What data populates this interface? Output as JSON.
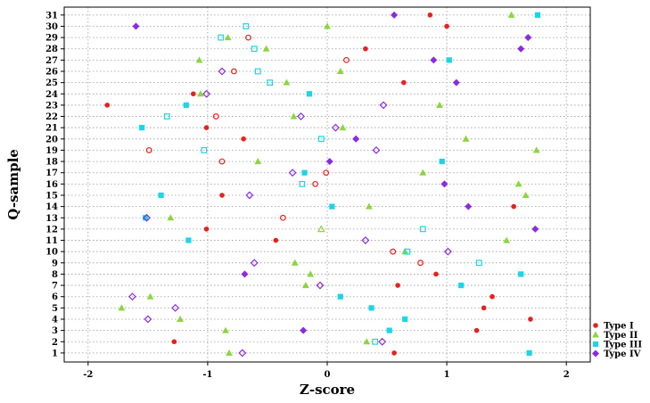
{
  "chart_data": {
    "type": "scatter",
    "xlabel": "Z-score",
    "ylabel": "Q-sample",
    "xlim": [
      -2.2,
      2.2
    ],
    "ylim": [
      0.2,
      31.7
    ],
    "xticks": [
      -2,
      -1,
      0,
      1,
      2
    ],
    "yticks": [
      1,
      2,
      3,
      4,
      5,
      6,
      7,
      8,
      9,
      10,
      11,
      12,
      13,
      14,
      15,
      16,
      17,
      18,
      19,
      20,
      21,
      22,
      23,
      24,
      25,
      26,
      27,
      28,
      29,
      30,
      31
    ],
    "grid": true,
    "legend_position": "bottom-right",
    "series": [
      {
        "name": "Type I",
        "color": "#e8201e",
        "marker": "circle",
        "points": [
          [
            0.56,
            1
          ],
          [
            -1.28,
            2
          ],
          [
            1.25,
            3
          ],
          [
            1.7,
            4
          ],
          [
            1.31,
            5
          ],
          [
            1.38,
            6
          ],
          [
            0.59,
            7
          ],
          [
            0.91,
            8
          ],
          [
            0.78,
            9
          ],
          [
            0.55,
            10
          ],
          [
            -0.43,
            11
          ],
          [
            -1.01,
            12
          ],
          [
            -0.37,
            13
          ],
          [
            1.56,
            14
          ],
          [
            -0.88,
            15
          ],
          [
            -0.1,
            16
          ],
          [
            -0.01,
            17
          ],
          [
            -0.88,
            18
          ],
          [
            -1.49,
            19
          ],
          [
            -0.7,
            20
          ],
          [
            -1.01,
            21
          ],
          [
            -0.93,
            22
          ],
          [
            -1.84,
            23
          ],
          [
            -1.12,
            24
          ],
          [
            0.64,
            25
          ],
          [
            -0.78,
            26
          ],
          [
            0.16,
            27
          ],
          [
            0.32,
            28
          ],
          [
            -0.66,
            29
          ],
          [
            1.0,
            30
          ],
          [
            0.86,
            31
          ]
        ],
        "hollow": [
          false,
          false,
          false,
          false,
          false,
          false,
          false,
          false,
          true,
          true,
          false,
          false,
          true,
          false,
          false,
          true,
          true,
          true,
          true,
          false,
          false,
          true,
          false,
          false,
          false,
          true,
          true,
          false,
          true,
          false,
          false
        ]
      },
      {
        "name": "Type II",
        "color": "#8cd63c",
        "marker": "triangle",
        "points": [
          [
            -0.82,
            1
          ],
          [
            0.33,
            2
          ],
          [
            -0.85,
            3
          ],
          [
            -1.23,
            4
          ],
          [
            -1.72,
            5
          ],
          [
            -1.48,
            6
          ],
          [
            -0.18,
            7
          ],
          [
            -0.14,
            8
          ],
          [
            -0.27,
            9
          ],
          [
            0.65,
            10
          ],
          [
            1.5,
            11
          ],
          [
            -0.05,
            12
          ],
          [
            -1.31,
            13
          ],
          [
            0.35,
            14
          ],
          [
            1.66,
            15
          ],
          [
            1.6,
            16
          ],
          [
            0.8,
            17
          ],
          [
            -0.58,
            18
          ],
          [
            1.75,
            19
          ],
          [
            1.16,
            20
          ],
          [
            0.13,
            21
          ],
          [
            -0.28,
            22
          ],
          [
            0.94,
            23
          ],
          [
            -1.06,
            24
          ],
          [
            -0.34,
            25
          ],
          [
            0.11,
            26
          ],
          [
            -1.07,
            27
          ],
          [
            -0.51,
            28
          ],
          [
            -0.83,
            29
          ],
          [
            0.0,
            30
          ],
          [
            1.54,
            31
          ]
        ],
        "hollow": [
          false,
          false,
          false,
          false,
          false,
          false,
          false,
          false,
          false,
          false,
          false,
          true,
          false,
          false,
          false,
          false,
          false,
          false,
          false,
          false,
          false,
          false,
          false,
          false,
          false,
          false,
          false,
          false,
          false,
          false,
          false
        ]
      },
      {
        "name": "Type III",
        "color": "#1ad6e6",
        "marker": "square",
        "points": [
          [
            1.69,
            1
          ],
          [
            0.4,
            2
          ],
          [
            0.52,
            3
          ],
          [
            0.65,
            4
          ],
          [
            0.37,
            5
          ],
          [
            0.11,
            6
          ],
          [
            1.12,
            7
          ],
          [
            1.62,
            8
          ],
          [
            1.27,
            9
          ],
          [
            0.67,
            10
          ],
          [
            -1.16,
            11
          ],
          [
            0.8,
            12
          ],
          [
            -1.52,
            13
          ],
          [
            0.04,
            14
          ],
          [
            -1.39,
            15
          ],
          [
            -0.21,
            16
          ],
          [
            -0.19,
            17
          ],
          [
            0.96,
            18
          ],
          [
            -1.03,
            19
          ],
          [
            -0.05,
            20
          ],
          [
            -1.55,
            21
          ],
          [
            -1.34,
            22
          ],
          [
            -1.18,
            23
          ],
          [
            -0.15,
            24
          ],
          [
            -0.48,
            25
          ],
          [
            -0.58,
            26
          ],
          [
            1.02,
            27
          ],
          [
            -0.61,
            28
          ],
          [
            -0.89,
            29
          ],
          [
            -0.68,
            30
          ],
          [
            1.76,
            31
          ]
        ],
        "hollow": [
          false,
          true,
          false,
          false,
          false,
          false,
          false,
          false,
          true,
          true,
          false,
          true,
          false,
          false,
          false,
          true,
          false,
          false,
          true,
          true,
          false,
          true,
          false,
          false,
          true,
          true,
          false,
          true,
          true,
          true,
          false
        ]
      },
      {
        "name": "Type IV",
        "color": "#8a2be2",
        "marker": "diamond",
        "points": [
          [
            -0.71,
            1
          ],
          [
            0.46,
            2
          ],
          [
            -0.2,
            3
          ],
          [
            -1.5,
            4
          ],
          [
            -1.27,
            5
          ],
          [
            -1.63,
            6
          ],
          [
            -0.06,
            7
          ],
          [
            -0.69,
            8
          ],
          [
            -0.61,
            9
          ],
          [
            1.01,
            10
          ],
          [
            0.32,
            11
          ],
          [
            1.74,
            12
          ],
          [
            -1.51,
            13
          ],
          [
            1.18,
            14
          ],
          [
            -0.65,
            15
          ],
          [
            0.98,
            16
          ],
          [
            -0.29,
            17
          ],
          [
            0.02,
            18
          ],
          [
            0.41,
            19
          ],
          [
            0.24,
            20
          ],
          [
            0.07,
            21
          ],
          [
            -0.22,
            22
          ],
          [
            0.47,
            23
          ],
          [
            -1.01,
            24
          ],
          [
            1.08,
            25
          ],
          [
            -0.88,
            26
          ],
          [
            0.89,
            27
          ],
          [
            1.62,
            28
          ],
          [
            1.68,
            29
          ],
          [
            -1.6,
            30
          ],
          [
            0.56,
            31
          ]
        ],
        "hollow": [
          true,
          true,
          false,
          true,
          true,
          true,
          true,
          false,
          true,
          true,
          true,
          false,
          true,
          false,
          true,
          false,
          true,
          false,
          true,
          false,
          true,
          true,
          true,
          true,
          false,
          true,
          false,
          false,
          false,
          false,
          false
        ]
      }
    ]
  }
}
